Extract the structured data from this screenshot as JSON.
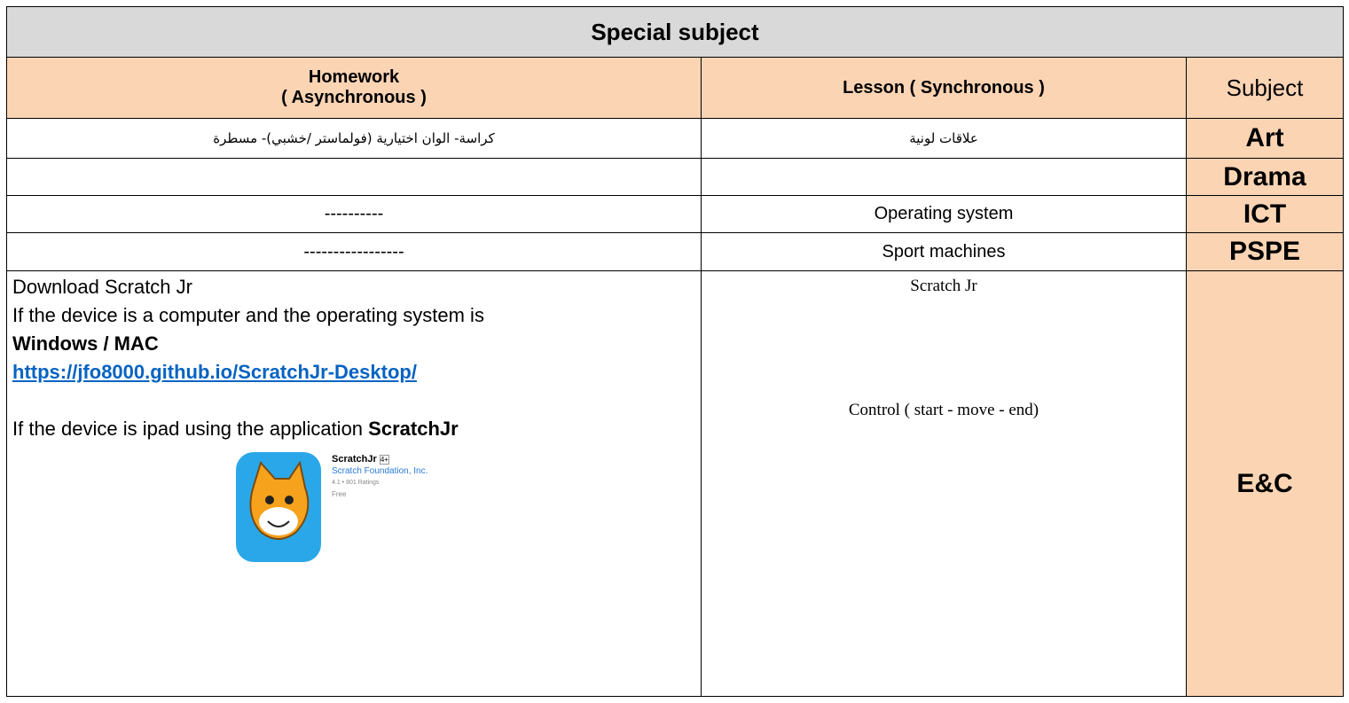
{
  "table": {
    "title": "Special subject",
    "header": {
      "homework": [
        "Homework",
        "( Asynchronous )"
      ],
      "lesson": "Lesson ( Synchronous )",
      "subject": "Subject"
    },
    "rows": [
      {
        "subject": "Art",
        "lesson": "علاقات لونية",
        "homework": "كراسة- الوان اختيارية (فولماستر /خشبي)- مسطرة"
      },
      {
        "subject": "Drama"
      },
      {
        "subject": "ICT",
        "lesson": "Operating system",
        "homework": "----------"
      },
      {
        "subject": "PSPE",
        "lesson": "Sport machines",
        "homework": "-----------------"
      },
      {
        "subject": "E&C",
        "lesson": [
          "Scratch Jr",
          "Control  ( start - move - end)"
        ],
        "homework": {
          "line1": "Download Scratch Jr",
          "line2": "If the device is a computer and the operating system is",
          "line3": "Windows / MAC",
          "link": "https://jfo8000.github.io/ScratchJr-Desktop/",
          "line4": "If the device is ipad using the application",
          "line4_bold": "ScratchJr",
          "app": {
            "name": "ScratchJr",
            "age": "4+",
            "developer": "Scratch Foundation, Inc.",
            "ratings": "4.1 • 801 Ratings",
            "price": "Free"
          }
        }
      }
    ]
  }
}
